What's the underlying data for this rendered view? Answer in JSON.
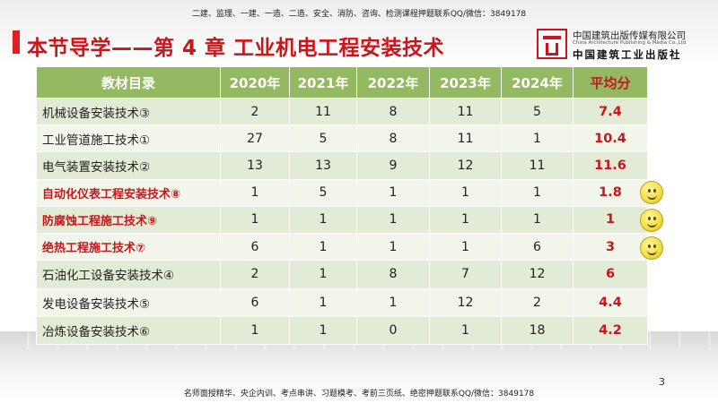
{
  "header": {
    "top_note": "二建、监理、一建、一造、二造、安全、消防、咨询、检测课程押题联系QQ/微信：3849178",
    "title": "本节导学——第 4 章  工业机电工程安装技术",
    "publisher_cn": "中国建筑出版传媒有限公司",
    "publisher_en": "China Architecture Publishing & Media Co.,Ltd",
    "publisher_cn2": "中国建筑工业出版社"
  },
  "table": {
    "headers": [
      "教材目录",
      "2020年",
      "2021年",
      "2022年",
      "2023年",
      "2024年",
      "平均分"
    ],
    "rows": [
      {
        "name": "机械设备安装技术③",
        "v2020": "2",
        "v2021": "11",
        "v2022": "8",
        "v2023": "11",
        "v2024": "5",
        "avg": "7.4"
      },
      {
        "name": "工业管道施工技术①",
        "v2020": "27",
        "v2021": "5",
        "v2022": "8",
        "v2023": "11",
        "v2024": "1",
        "avg": "10.4"
      },
      {
        "name": "电气装置安装技术②",
        "v2020": "13",
        "v2021": "13",
        "v2022": "9",
        "v2023": "12",
        "v2024": "11",
        "avg": "11.6"
      },
      {
        "name": "自动化仪表工程安装技术⑧",
        "v2020": "1",
        "v2021": "5",
        "v2022": "1",
        "v2023": "1",
        "v2024": "1",
        "avg": "1.8"
      },
      {
        "name": "防腐蚀工程施工技术⑨",
        "v2020": "1",
        "v2021": "1",
        "v2022": "1",
        "v2023": "1",
        "v2024": "1",
        "avg": "1"
      },
      {
        "name": "绝热工程施工技术⑦",
        "v2020": "6",
        "v2021": "1",
        "v2022": "1",
        "v2023": "1",
        "v2024": "6",
        "avg": "3"
      },
      {
        "name": "石油化工设备安装技术④",
        "v2020": "2",
        "v2021": "1",
        "v2022": "8",
        "v2023": "7",
        "v2024": "12",
        "avg": "6"
      },
      {
        "name": "发电设备安装技术⑤",
        "v2020": "6",
        "v2021": "1",
        "v2022": "1",
        "v2023": "12",
        "v2024": "2",
        "avg": "4.4"
      },
      {
        "name": "冶炼设备安装技术⑥",
        "v2020": "1",
        "v2021": "1",
        "v2022": "0",
        "v2023": "1",
        "v2024": "18",
        "avg": "4.2"
      }
    ]
  },
  "colors": {
    "accent_red": "#c8161d",
    "header_green": "#93ba63",
    "row_light": "#f2f6ea",
    "row_dark": "#e2ebd5"
  },
  "icons": [
    "smiley-icon",
    "smiley-icon",
    "smiley-icon"
  ],
  "footer": {
    "note": "名师面授精华、央企内训、考点串讲、习题模考、考前三页纸、绝密押题联系QQ/微信：3849178",
    "page_number": "3"
  }
}
